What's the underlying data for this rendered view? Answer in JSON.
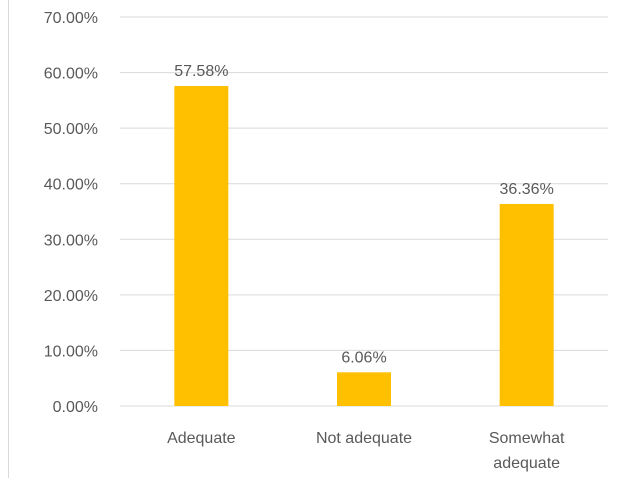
{
  "chart_data": {
    "type": "bar",
    "title": "",
    "xlabel": "",
    "ylabel": "",
    "categories": [
      [
        "Adequate"
      ],
      [
        "Not adequate"
      ],
      [
        "Somewhat",
        "adequate"
      ]
    ],
    "values": [
      57.58,
      6.06,
      36.36
    ],
    "value_labels": [
      "57.58%",
      "6.06%",
      "36.36%"
    ],
    "ylim": [
      0,
      70
    ],
    "yticks": [
      0,
      10,
      20,
      30,
      40,
      50,
      60,
      70
    ],
    "ytick_labels": [
      "0.00%",
      "10.00%",
      "20.00%",
      "30.00%",
      "40.00%",
      "50.00%",
      "60.00%",
      "70.00%"
    ],
    "grid": true,
    "legend": "none",
    "bar_color": "#ffc000",
    "grid_color": "#d9d9d9",
    "text_color": "#595959"
  }
}
